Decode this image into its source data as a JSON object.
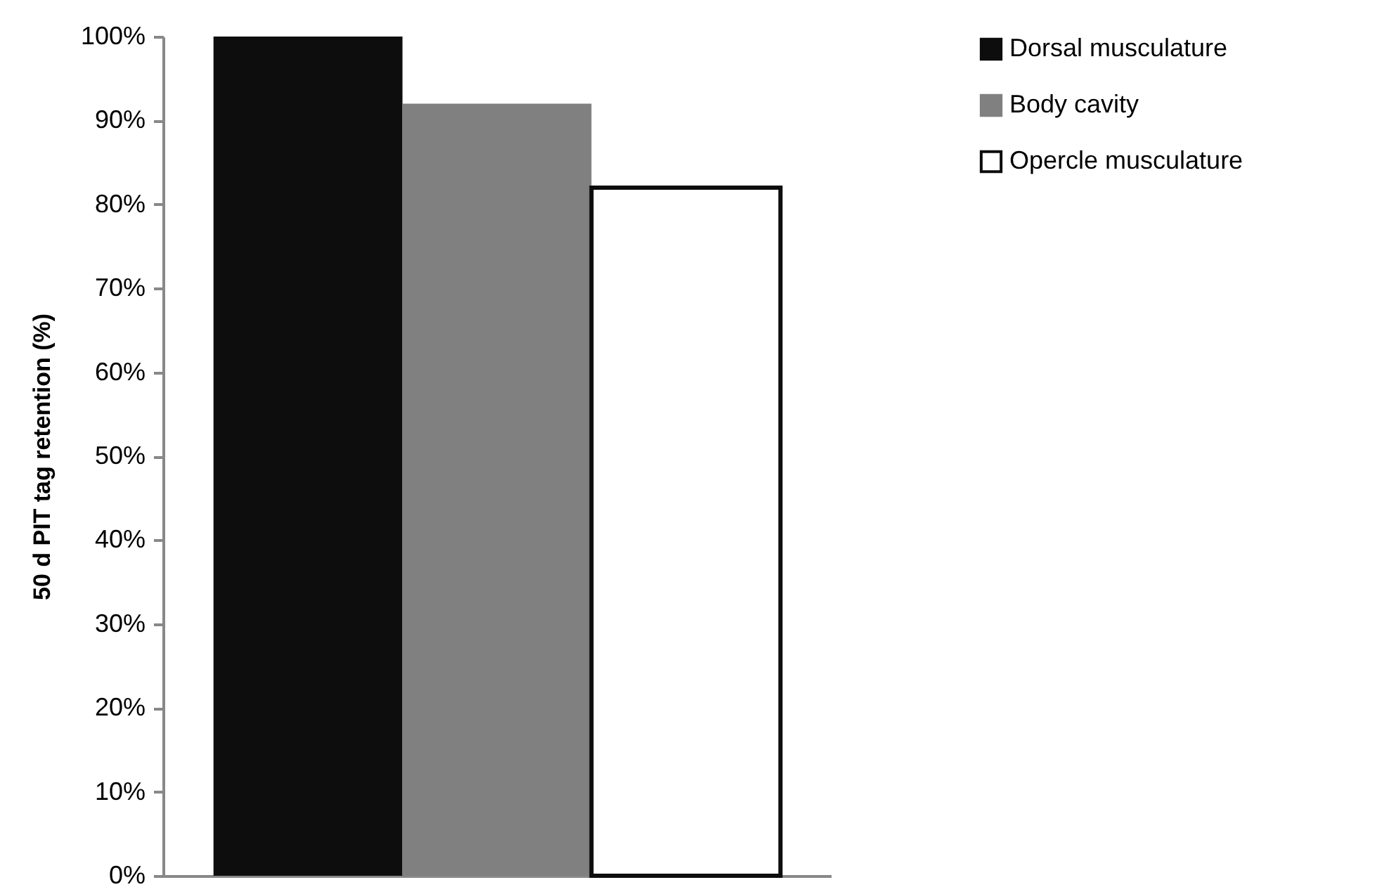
{
  "chart_data": {
    "type": "bar",
    "ylabel": "50 d PIT tag retention (%)",
    "categories": [
      null
    ],
    "series": [
      {
        "name": "Dorsal musculature",
        "color": "#0d0d0d",
        "values": [
          100
        ]
      },
      {
        "name": "Body cavity",
        "color": "#808080",
        "values": [
          92
        ]
      },
      {
        "name": "Opercle musculature",
        "color": "#ffffff",
        "values": [
          82
        ]
      }
    ],
    "ylim": [
      0,
      100
    ],
    "yticks": [
      {
        "value": 0,
        "label": "0%"
      },
      {
        "value": 10,
        "label": "10%"
      },
      {
        "value": 20,
        "label": "20%"
      },
      {
        "value": 30,
        "label": "30%"
      },
      {
        "value": 40,
        "label": "40%"
      },
      {
        "value": 50,
        "label": "50%"
      },
      {
        "value": 60,
        "label": "60%"
      },
      {
        "value": 70,
        "label": "70%"
      },
      {
        "value": 80,
        "label": "80%"
      },
      {
        "value": 90,
        "label": "90%"
      },
      {
        "value": 100,
        "label": "100%"
      }
    ],
    "grid": false,
    "legend": "right"
  }
}
